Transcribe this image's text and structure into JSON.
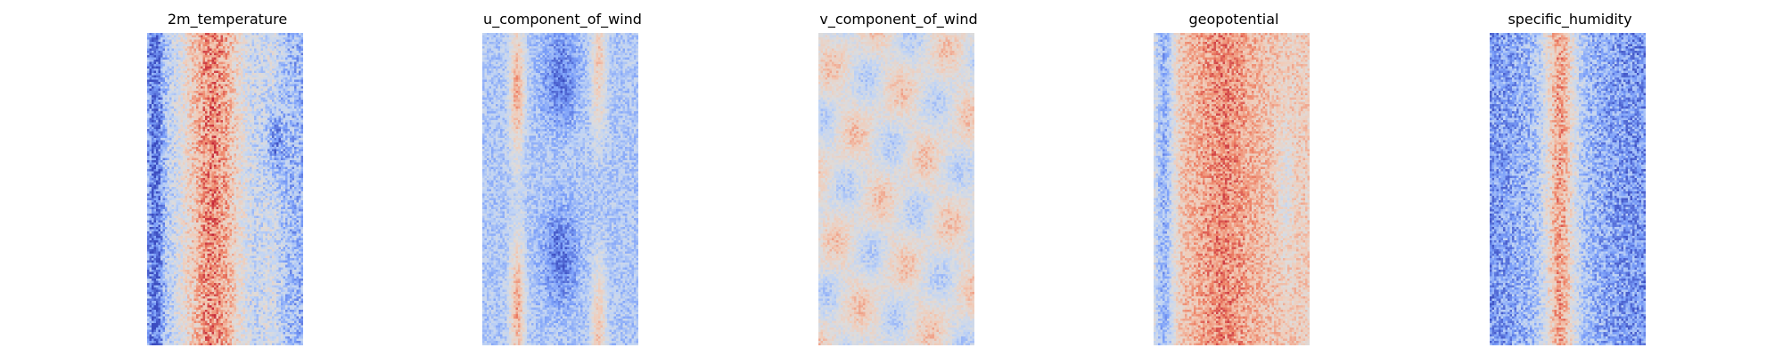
{
  "figure": {
    "colormap": "coolwarm",
    "colormap_stops": [
      "#3b4cc0",
      "#7b9ff9",
      "#c0d4f5",
      "#dddcdc",
      "#f2cbb7",
      "#ee8468",
      "#b40426"
    ],
    "panels": [
      {
        "title": "2m_temperature",
        "pattern": "temperature"
      },
      {
        "title": "u_component_of_wind",
        "pattern": "u_wind"
      },
      {
        "title": "v_component_of_wind",
        "pattern": "v_wind"
      },
      {
        "title": "geopotential",
        "pattern": "geopotential"
      },
      {
        "title": "specific_humidity",
        "pattern": "humidity"
      }
    ]
  }
}
